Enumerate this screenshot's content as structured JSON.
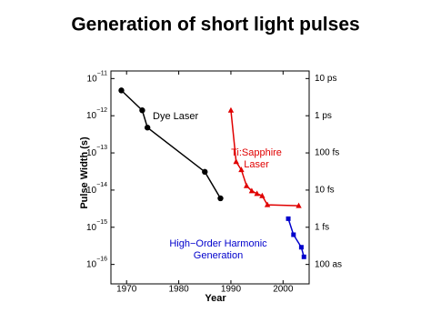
{
  "chart_data": {
    "type": "line",
    "title": "Generation of short light pulses",
    "x_label": "Year",
    "y_label": "Pulse Width (s)",
    "log_y": true,
    "xlim": [
      1967,
      2005
    ],
    "xticks": [
      1970,
      1980,
      1990,
      2000
    ],
    "ylim": [
      3e-17,
      1.6e-11
    ],
    "yticks": [
      {
        "value": 1e-11,
        "label": "10−11"
      },
      {
        "value": 1e-12,
        "label": "10−12"
      },
      {
        "value": 1e-13,
        "label": "10−13"
      },
      {
        "value": 1e-14,
        "label": "10−14"
      },
      {
        "value": 1e-15,
        "label": "10−15"
      },
      {
        "value": 1e-16,
        "label": "10−16"
      }
    ],
    "y2lim": [
      3e-17,
      1.6e-11
    ],
    "y2ticks": [
      {
        "value": 1e-11,
        "label": "10 ps"
      },
      {
        "value": 1e-12,
        "label": "1 ps"
      },
      {
        "value": 1e-13,
        "label": "100 fs"
      },
      {
        "value": 1e-14,
        "label": "10 fs"
      },
      {
        "value": 1e-15,
        "label": "1 fs"
      },
      {
        "value": 1e-16,
        "label": "100 as"
      }
    ],
    "series": [
      {
        "name": [
          "Dye Laser"
        ],
        "color": "#000000",
        "marker": "circle",
        "x": [
          1969,
          1973,
          1974,
          1985,
          1988
        ],
        "values": [
          4.8e-12,
          1.4e-12,
          4.8e-13,
          3.1e-14,
          6e-15
        ]
      },
      {
        "name": [
          "Ti:Sapphire",
          "Laser"
        ],
        "color": "#e00000",
        "marker": "triangle",
        "x": [
          1990,
          1991,
          1992,
          1993,
          1994,
          1995,
          1996,
          1997,
          2003
        ],
        "values": [
          1.4e-12,
          5.8e-14,
          3.5e-14,
          1.3e-14,
          9.5e-15,
          8e-15,
          7e-15,
          4e-15,
          3.8e-15
        ]
      },
      {
        "name": [
          "High−Order Harmonic",
          "Generation"
        ],
        "color": "#0000cc",
        "marker": "square",
        "x": [
          2001,
          2002,
          2003.5,
          2004
        ],
        "values": [
          1.7e-15,
          6.3e-16,
          2.9e-16,
          1.6e-16
        ]
      }
    ]
  }
}
